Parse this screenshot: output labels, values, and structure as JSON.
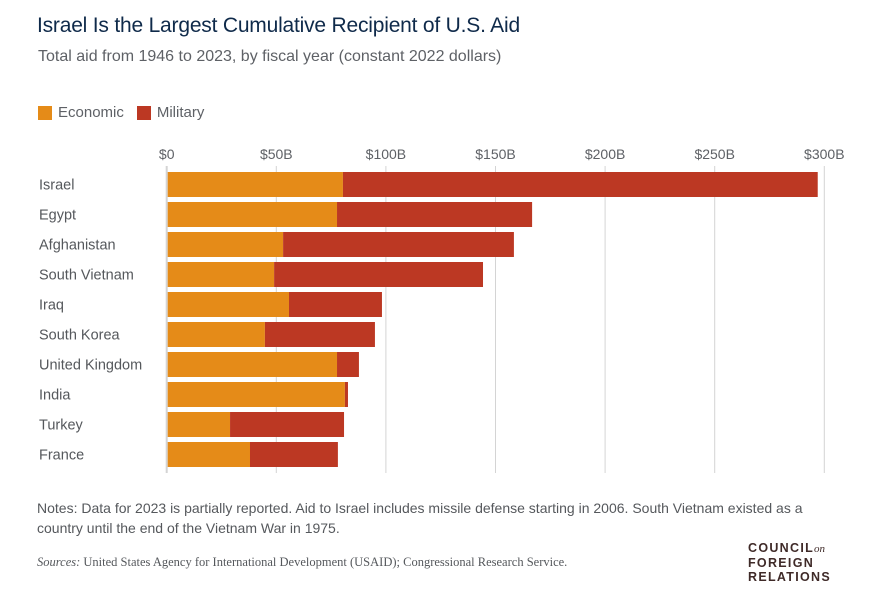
{
  "header": {
    "title": "Israel Is the Largest Cumulative Recipient of U.S. Aid",
    "subtitle": "Total aid from 1946 to 2023, by fiscal year (constant 2022 dollars)"
  },
  "colors": {
    "economic": "#e58b18",
    "military": "#bc3823",
    "grid": "#d4d4d4",
    "axis_text": "#5e6166"
  },
  "chart_data": {
    "type": "bar",
    "orientation": "horizontal",
    "stacked": true,
    "title": "Israel Is the Largest Cumulative Recipient of U.S. Aid",
    "subtitle": "Total aid from 1946 to 2023, by fiscal year (constant 2022 dollars)",
    "xlabel": "",
    "ylabel": "",
    "xlim": [
      0,
      300
    ],
    "x_ticks": [
      0,
      50,
      100,
      150,
      200,
      250,
      300
    ],
    "x_tick_labels": [
      "$0",
      "$50B",
      "$100B",
      "$150B",
      "$200B",
      "$250B",
      "$300B"
    ],
    "x_axis_position": "top",
    "grid": true,
    "legend_position": "top-left",
    "units": "billions of constant 2022 U.S. dollars",
    "categories": [
      "Israel",
      "Egypt",
      "Afghanistan",
      "South Vietnam",
      "Iraq",
      "South Korea",
      "United Kingdom",
      "India",
      "Turkey",
      "France"
    ],
    "series": [
      {
        "name": "Economic",
        "color": "#e58b18",
        "values": [
          80.4,
          77.7,
          53.1,
          49.0,
          55.8,
          44.8,
          77.7,
          81.3,
          28.9,
          38.0
        ]
      },
      {
        "name": "Military",
        "color": "#bc3823",
        "values": [
          216.6,
          89.0,
          105.3,
          95.3,
          42.4,
          50.2,
          10.0,
          1.4,
          52.0,
          40.1
        ]
      }
    ]
  },
  "legend": [
    {
      "label": "Economic",
      "color": "#e58b18"
    },
    {
      "label": "Military",
      "color": "#bc3823"
    }
  ],
  "footer": {
    "notes": "Notes: Data for 2023 is partially reported. Aid to Israel includes missile defense starting in 2006. South Vietnam existed as a country until the end of the Vietnam War in 1975.",
    "sources_label": "Sources:",
    "sources_text": " United States Agency for International Development (USAID); Congressional Research Service.",
    "logo": {
      "line1": "COUNCIL",
      "line1_suffix": "on",
      "line2": "FOREIGN",
      "line3": "RELATIONS"
    }
  }
}
